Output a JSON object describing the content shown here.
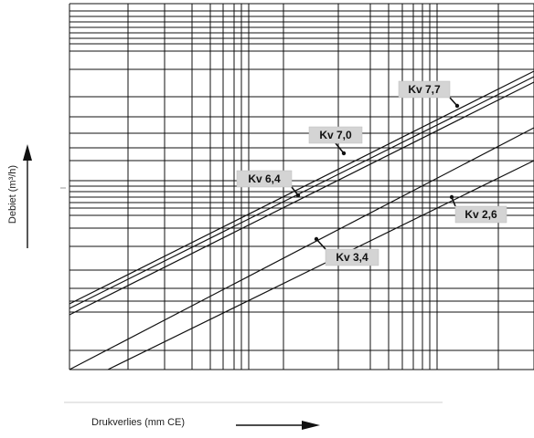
{
  "chart_data": {
    "type": "line",
    "title": "",
    "xlabel": "Drukverlies (mm CE)",
    "ylabel": "Debiet (m³/h)",
    "x_scale": "log",
    "y_scale": "log",
    "grid": true,
    "series": [
      {
        "name": "Kv 7,7",
        "slope": 0.5
      },
      {
        "name": "Kv 7,0",
        "slope": 0.5
      },
      {
        "name": "Kv 6,4",
        "slope": 0.5
      },
      {
        "name": "Kv 3,4",
        "slope": 0.5
      },
      {
        "name": "Kv 2,6",
        "slope": 0.5
      }
    ]
  },
  "colors": {
    "grid": "#111111",
    "lines": "#111111",
    "label_bg": "#d4d4d4"
  }
}
